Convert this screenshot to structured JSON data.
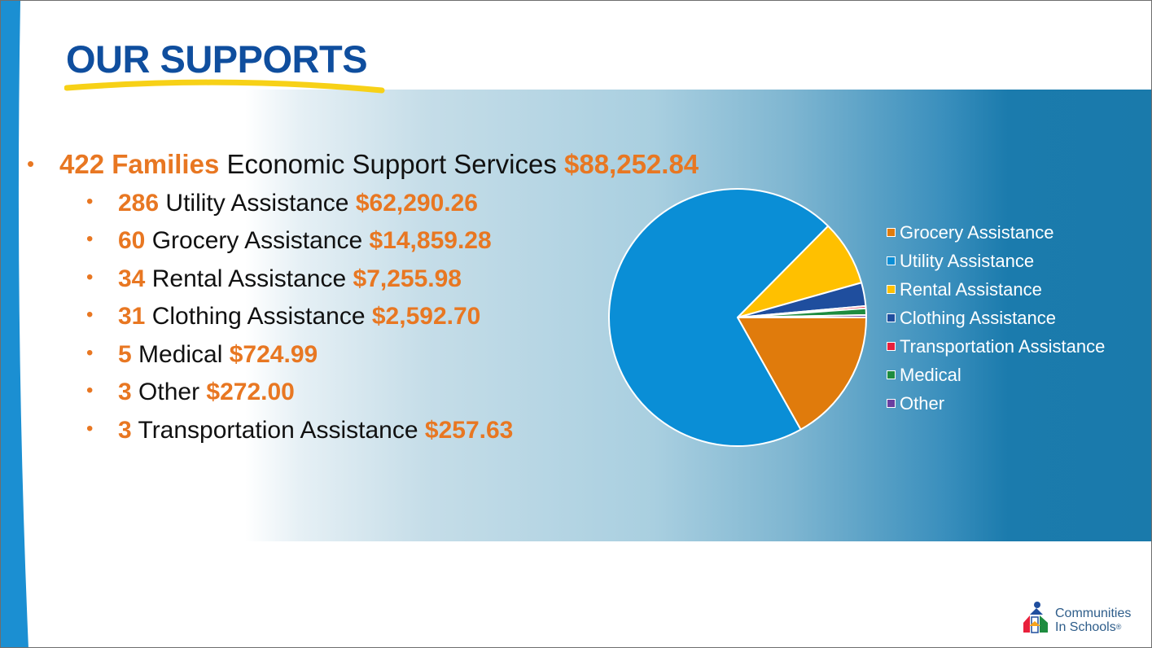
{
  "slide": {
    "title": "OUR SUPPORTS",
    "main_item": {
      "count": "422 Families",
      "label": "Economic Support Services",
      "amount": "$88,252.84"
    },
    "sub_items": [
      {
        "count": "286",
        "label": "Utility Assistance",
        "amount": "$62,290.26"
      },
      {
        "count": "60",
        "label": "Grocery Assistance",
        "amount": "$14,859.28"
      },
      {
        "count": "34",
        "label": "Rental Assistance",
        "amount": "$7,255.98"
      },
      {
        "count": "31",
        "label": "Clothing Assistance",
        "amount": "$2,592.70"
      },
      {
        "count": "5",
        "label": "Medical",
        "amount": "$724.99"
      },
      {
        "count": "3",
        "label": "Other",
        "amount": "$272.00"
      },
      {
        "count": "3",
        "label": "Transportation Assistance",
        "amount": "$257.63"
      }
    ],
    "logo": {
      "line1": "Communities",
      "line2": "In Schools",
      "mark": "®"
    }
  },
  "colors": {
    "title_blue": "#0f4e9e",
    "accent_orange": "#e87722",
    "underline_yellow": "#f7d117",
    "band_blue": "#1a7aab",
    "left_bar_blue": "#1b8fd2"
  },
  "chart_data": {
    "type": "pie",
    "categories": [
      "Grocery Assistance",
      "Utility Assistance",
      "Rental Assistance",
      "Clothing Assistance",
      "Transportation Assistance",
      "Medical",
      "Other"
    ],
    "values": [
      14859.28,
      62290.26,
      7255.98,
      2592.7,
      257.63,
      724.99,
      272.0
    ],
    "colors": [
      "#e07b0c",
      "#0a8ed6",
      "#ffc000",
      "#1f4e9e",
      "#e8203c",
      "#1e8c3f",
      "#6a3fa0"
    ],
    "legend": {
      "position": "right"
    }
  }
}
